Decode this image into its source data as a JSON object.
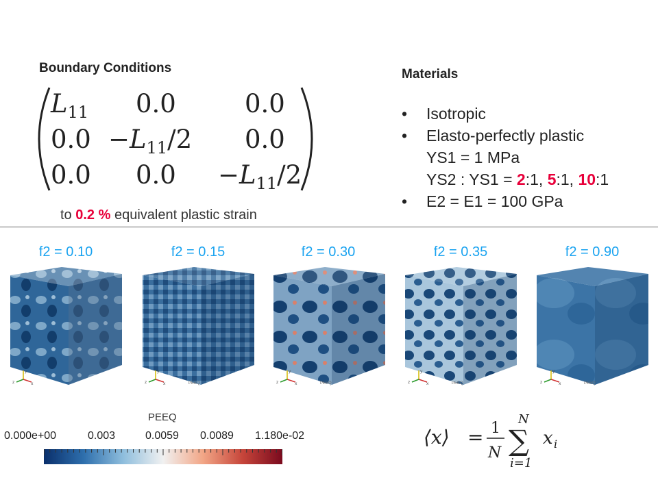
{
  "boundary_conditions": {
    "title": "Boundary Conditions",
    "matrix": [
      [
        "L11",
        "0.0",
        "0.0"
      ],
      [
        "0.0",
        "−L11/2",
        "0.0"
      ],
      [
        "0.0",
        "0.0",
        "−L11/2"
      ]
    ],
    "strain_prefix": "to",
    "strain_value": "0.2 %",
    "strain_suffix": "equivalent plastic strain"
  },
  "materials": {
    "title": "Materials",
    "bullet_symbol": "•",
    "items": {
      "isotropic": "Isotropic",
      "plastic": "Elasto-perfectly plastic",
      "ys1": "YS1 = 1 MPa",
      "ys2_prefix": "YS2 : YS1 = ",
      "ratio_2": "2",
      "ratio_5": "5",
      "ratio_10": "10",
      "ratio_suffix": ":1",
      "comma": ", ",
      "moduli": "E2 = E1 = 100 GPa"
    }
  },
  "cubes": [
    {
      "label": "f2 = 0.10"
    },
    {
      "label": "f2 = 0.15"
    },
    {
      "label": "f2 = 0.30"
    },
    {
      "label": "f2 = 0.35"
    },
    {
      "label": "f2 = 0.90"
    }
  ],
  "axis_triad": {
    "y": "y",
    "z": "z",
    "x": "x"
  },
  "cube_field_label": "PEEQ",
  "colorbar": {
    "title": "PEEQ",
    "ticks": [
      "0.000e+00",
      "0.003",
      "0.0059",
      "0.0089",
      "1.180e-02"
    ],
    "colors": [
      "#0a2f6b",
      "#2e6fad",
      "#8fbedd",
      "#f1f1f1",
      "#f2a686",
      "#c6453a",
      "#7a0a1e"
    ]
  },
  "formula": {
    "lhs": "⟨x⟩",
    "equals": "=",
    "numerator": "1",
    "denominator": "N",
    "sum": "∑",
    "upper": "N",
    "lower": "i=1",
    "term": "x",
    "term_sub": "i"
  }
}
